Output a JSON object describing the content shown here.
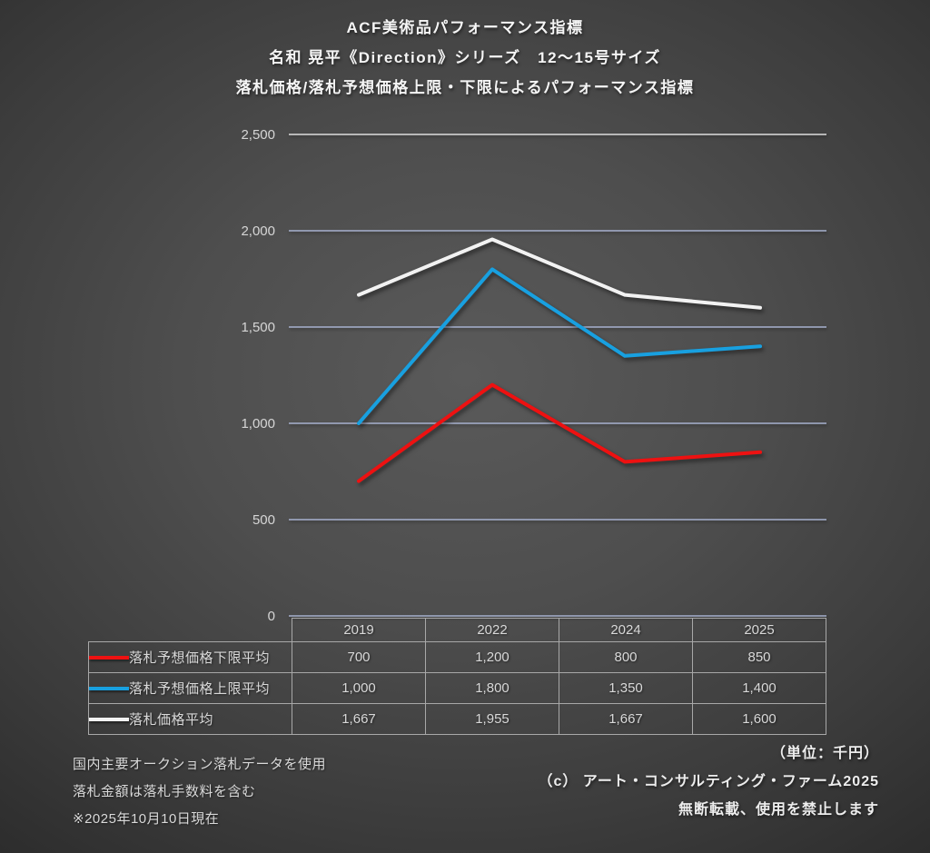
{
  "title": {
    "line1": "ACF美術品パフォーマンス指標",
    "line2": "名和 晃平《Direction》シリーズ　12～15号サイズ",
    "line3": "落札価格/落札予想価格上限・下限によるパフォーマンス指標"
  },
  "chart_data": {
    "type": "line",
    "categories": [
      "2019",
      "2022",
      "2024",
      "2025"
    ],
    "series": [
      {
        "name": "落札予想価格下限平均",
        "color": "#ee1111",
        "values": [
          700,
          1200,
          800,
          850
        ]
      },
      {
        "name": "落札予想価格上限平均",
        "color": "#18a0e0",
        "values": [
          1000,
          1800,
          1350,
          1400
        ]
      },
      {
        "name": "落札価格平均",
        "color": "#f2f2f2",
        "values": [
          1667,
          1955,
          1667,
          1600
        ]
      }
    ],
    "ylim": [
      0,
      2500
    ],
    "yticks": [
      {
        "v": 0,
        "label": "0"
      },
      {
        "v": 500,
        "label": "500"
      },
      {
        "v": 1000,
        "label": "1,000"
      },
      {
        "v": 1500,
        "label": "1,500"
      },
      {
        "v": 2000,
        "label": "2,000"
      },
      {
        "v": 2500,
        "label": "2,500"
      }
    ],
    "grid": true,
    "legend_position": "table-left",
    "unit_note": "（単位：千円）"
  },
  "table": {
    "col_headers": [
      "2019",
      "2022",
      "2024",
      "2025"
    ],
    "rows": [
      {
        "label": "落札予想価格下限平均",
        "swatch_color": "#ee1111",
        "cells": [
          "700",
          "1,200",
          "800",
          "850"
        ]
      },
      {
        "label": "落札予想価格上限平均",
        "swatch_color": "#18a0e0",
        "cells": [
          "1,000",
          "1,800",
          "1,350",
          "1,400"
        ]
      },
      {
        "label": "落札価格平均",
        "swatch_color": "#f2f2f2",
        "cells": [
          "1,667",
          "1,955",
          "1,667",
          "1,600"
        ]
      }
    ]
  },
  "footnotes": {
    "left1": "国内主要オークション落札データを使用",
    "left2": "落札金額は落札手数料を含む",
    "left3": "※2025年10月10日現在",
    "unit": "（単位：千円）",
    "copyright": "（c） アート・コンサルティング・ファーム2025",
    "notice": "無断転載、使用を禁止します"
  },
  "colors": {
    "gridline": "#a7b1cf",
    "top_gridline": "#dedede",
    "red_series": "#ee1111",
    "blue_series": "#18a0e0",
    "white_series": "#f2f2f2",
    "table_border": "#a8a8a8"
  }
}
